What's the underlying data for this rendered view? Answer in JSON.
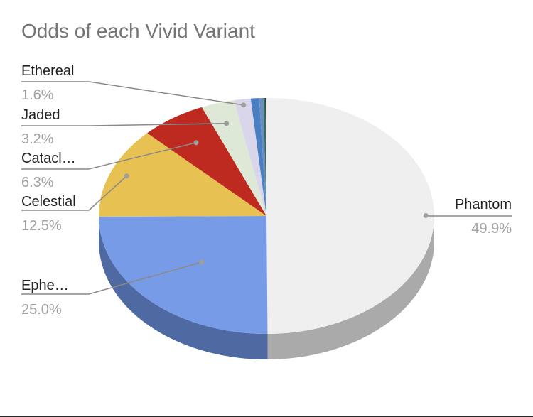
{
  "chart_data": {
    "type": "pie",
    "title": "Odds of each Vivid Variant",
    "slices": [
      {
        "label": "Phantom",
        "value": 49.9,
        "value_label": "49.9%",
        "color": "#efefef",
        "side_color": "#aaaaaa"
      },
      {
        "label": "Ephe…",
        "value": 25.0,
        "value_label": "25.0%",
        "color": "#779be6",
        "side_color": "#4f6aa3"
      },
      {
        "label": "Celestial",
        "value": 12.5,
        "value_label": "12.5%",
        "color": "#e8c153",
        "side_color": "#a88a3b"
      },
      {
        "label": "Catacl…",
        "value": 6.3,
        "value_label": "6.3%",
        "color": "#be2a20",
        "side_color": "#861e17"
      },
      {
        "label": "Jaded",
        "value": 3.2,
        "value_label": "3.2%",
        "color": "#dde8d7",
        "side_color": "#9ca698"
      },
      {
        "label": "Ethereal",
        "value": 1.6,
        "value_label": "1.6%",
        "color": "#d9d5ea",
        "side_color": "#9a97a6"
      },
      {
        "label": "",
        "value": 0.8,
        "value_label": "",
        "color": "#4a7fc1",
        "side_color": "#355a88"
      },
      {
        "label": "",
        "value": 0.4,
        "value_label": "",
        "color": "#6c8ebf",
        "side_color": "#4b6487"
      },
      {
        "label": "",
        "value": 0.2,
        "value_label": "",
        "color": "#2f6e5e",
        "side_color": "#214e43"
      },
      {
        "label": "",
        "value": 0.1,
        "value_label": "",
        "color": "#000000",
        "side_color": "#000000"
      }
    ],
    "label_placement": "outside-left-and-right",
    "style": "3d"
  }
}
